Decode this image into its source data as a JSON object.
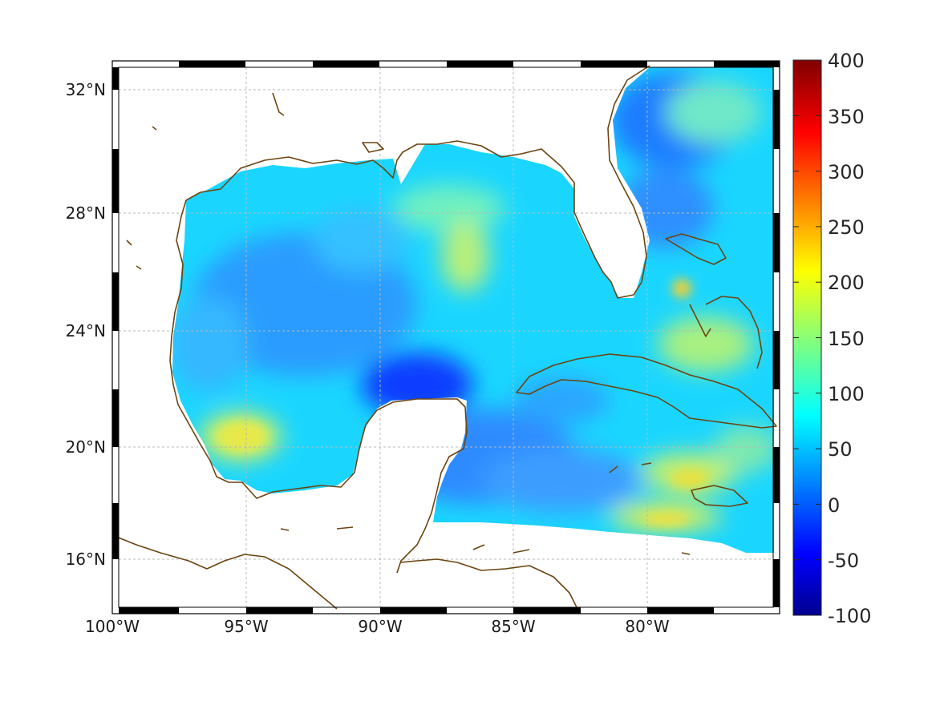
{
  "map": {
    "longitude_labels": [
      "100°W",
      "95°W",
      "90°W",
      "85°W",
      "80°W"
    ],
    "latitude_labels": [
      "32°N",
      "28°N",
      "24°N",
      "20°N",
      "16°N"
    ],
    "colorbar": {
      "ticks": [
        "400",
        "350",
        "300",
        "250",
        "200",
        "150",
        "100",
        "50",
        "0",
        "-50",
        "-100"
      ],
      "min": -100,
      "max": 400,
      "colormap": "jet"
    },
    "colors": {
      "coastline": "#6b4410",
      "background": "#ffffff",
      "frame": "#000000"
    }
  }
}
